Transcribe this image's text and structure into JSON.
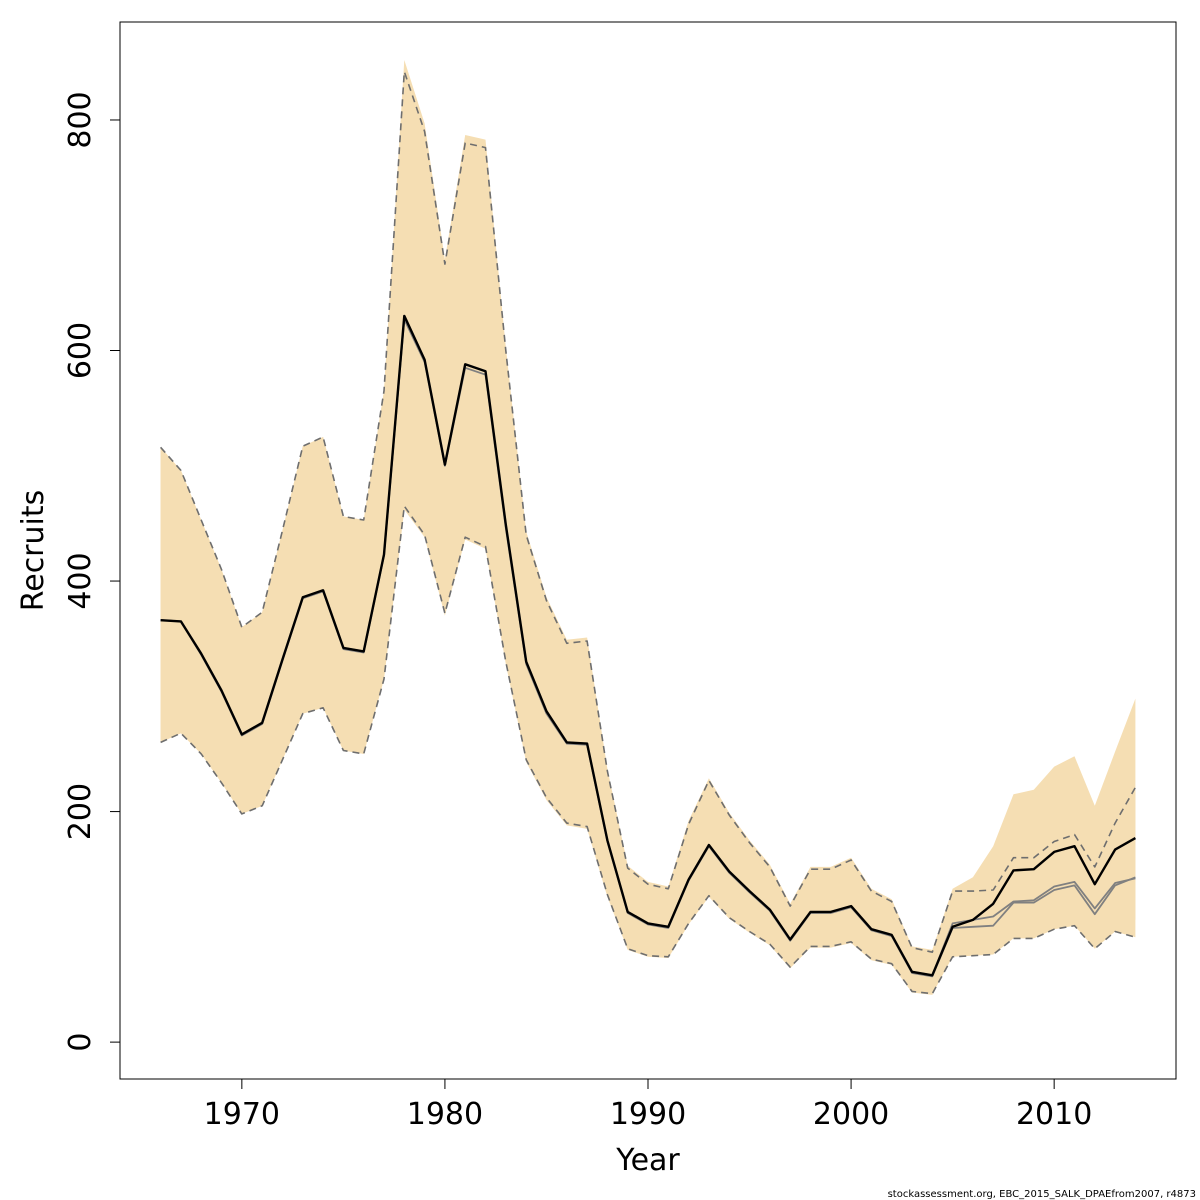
{
  "chart_data": {
    "type": "line",
    "xlabel": "Year",
    "ylabel": "Recruits",
    "xlim": [
      1964,
      2016
    ],
    "ylim": [
      -32,
      885
    ],
    "x_ticks": [
      1970,
      1980,
      1990,
      2000,
      2010
    ],
    "y_ticks": [
      0,
      200,
      400,
      600,
      800
    ],
    "x": [
      1966,
      1967,
      1968,
      1969,
      1970,
      1971,
      1972,
      1973,
      1974,
      1975,
      1976,
      1977,
      1978,
      1979,
      1980,
      1981,
      1982,
      1983,
      1984,
      1985,
      1986,
      1987,
      1988,
      1989,
      1990,
      1991,
      1992,
      1993,
      1994,
      1995,
      1996,
      1997,
      1998,
      1999,
      2000,
      2001,
      2002,
      2003,
      2004,
      2005,
      2006,
      2007,
      2008,
      2009,
      2010,
      2011,
      2012,
      2013,
      2014
    ],
    "series": [
      {
        "values": [
          366,
          365,
          337,
          305,
          267,
          277,
          332,
          386,
          392,
          342,
          339,
          423,
          630,
          592,
          501,
          588,
          582,
          449,
          330,
          287,
          260,
          259,
          175,
          113,
          103,
          100,
          141,
          171,
          148,
          131,
          115,
          89,
          113,
          113,
          118,
          98,
          93,
          61,
          58,
          100,
          106,
          120,
          149,
          150,
          165,
          170,
          137,
          167,
          177
        ]
      },
      {
        "values": [
          366,
          365,
          336,
          304,
          266,
          276,
          331,
          385,
          391,
          341,
          338,
          422,
          627,
          590,
          500,
          585,
          579,
          446,
          328,
          285,
          259,
          258,
          174,
          112,
          102,
          99,
          140,
          170,
          147,
          130,
          114,
          88,
          112,
          112,
          117,
          97,
          92,
          60,
          57,
          99,
          100,
          101,
          121,
          121,
          132,
          136,
          111,
          136,
          143
        ]
      },
      {
        "values": [
          516,
          496,
          453,
          410,
          360,
          373,
          444,
          517,
          525,
          456,
          453,
          565,
          842,
          790,
          675,
          780,
          776,
          600,
          440,
          383,
          346,
          348,
          235,
          151,
          137,
          133,
          189,
          227,
          197,
          173,
          152,
          118,
          150,
          150,
          158,
          131,
          122,
          82,
          78,
          131,
          131,
          132,
          160,
          160,
          174,
          180,
          152,
          190,
          221
        ]
      },
      {
        "values": [
          260,
          268,
          250,
          225,
          198,
          205,
          245,
          285,
          290,
          253,
          250,
          315,
          465,
          440,
          372,
          438,
          430,
          330,
          245,
          212,
          190,
          187,
          128,
          81,
          75,
          74,
          103,
          127,
          108,
          96,
          85,
          65,
          83,
          83,
          87,
          72,
          68,
          44,
          42,
          74,
          75,
          76,
          90,
          90,
          98,
          101,
          81,
          96,
          91
        ]
      },
      {
        "values": [
          366,
          365,
          337,
          305,
          267,
          277,
          332,
          386,
          392,
          342,
          339,
          423,
          630,
          592,
          501,
          588,
          582,
          449,
          330,
          287,
          260,
          259,
          175,
          113,
          103,
          100,
          141,
          171,
          148,
          131,
          115,
          89,
          113,
          113,
          118,
          98,
          93,
          61,
          58,
          103,
          106,
          109,
          122,
          123,
          135,
          139,
          116,
          138,
          142
        ]
      },
      {
        "values": [
          516,
          496,
          453,
          410,
          360,
          373,
          444,
          517,
          525,
          456,
          453,
          565,
          852,
          797,
          679,
          787,
          783,
          603,
          443,
          386,
          349,
          351,
          237,
          153,
          139,
          135,
          192,
          229,
          199,
          175,
          154,
          120,
          152,
          152,
          160,
          133,
          124,
          83,
          80,
          133,
          143,
          170,
          215,
          219,
          239,
          248,
          205,
          252,
          298
        ]
      },
      {
        "values": [
          260,
          268,
          250,
          225,
          198,
          205,
          245,
          285,
          290,
          253,
          250,
          315,
          462,
          438,
          370,
          436,
          428,
          328,
          243,
          210,
          188,
          185,
          126,
          80,
          74,
          73,
          102,
          126,
          107,
          95,
          84,
          64,
          82,
          82,
          86,
          71,
          67,
          43,
          41,
          76,
          80,
          86,
          102,
          103,
          114,
          117,
          95,
          111,
          106
        ]
      }
    ],
    "colors": {
      "band": "#f5deb3",
      "main_line": "#000000",
      "secondary_line": "#808080",
      "dashed_line": "#6e6e6e",
      "axis": "#000000"
    }
  },
  "footnote": "stockassessment.org, EBC_2015_SALK_DPAEfrom2007, r4873"
}
